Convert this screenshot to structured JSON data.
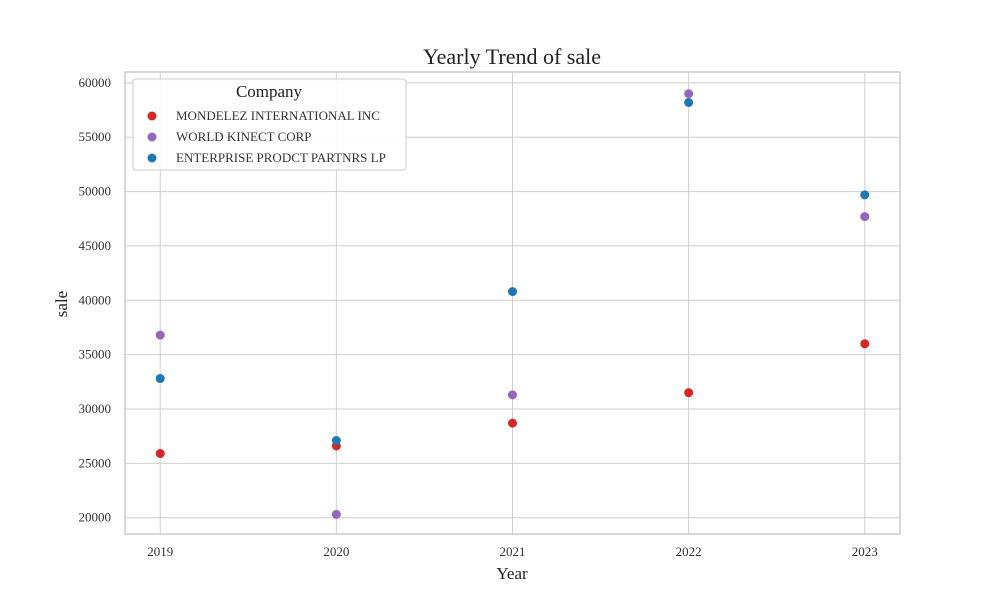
{
  "chart_data": {
    "type": "scatter",
    "title": "Yearly Trend of  sale",
    "xlabel": "Year",
    "ylabel": "sale",
    "x": [
      2019,
      2020,
      2021,
      2022,
      2023
    ],
    "xlim": [
      2018.8,
      2023.2
    ],
    "ylim": [
      18500,
      61000
    ],
    "yticks": [
      20000,
      25000,
      30000,
      35000,
      40000,
      45000,
      50000,
      55000,
      60000
    ],
    "grid": true,
    "legend": {
      "title": "Company",
      "position": "top-left"
    },
    "series": [
      {
        "name": "MONDELEZ INTERNATIONAL INC",
        "color": "#d62728",
        "values": [
          25900,
          26600,
          28700,
          31500,
          36000
        ]
      },
      {
        "name": "WORLD KINECT CORP",
        "color": "#9467bd",
        "values": [
          36800,
          20300,
          31300,
          59000,
          47700
        ]
      },
      {
        "name": "ENTERPRISE PRODCT PARTNRS LP",
        "color": "#1f77b4",
        "values": [
          32800,
          27100,
          40800,
          58200,
          49700
        ]
      }
    ]
  }
}
